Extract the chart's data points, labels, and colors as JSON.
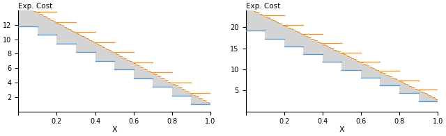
{
  "left_plot": {
    "title": "Exp. Cost",
    "xlabel": "X",
    "n_outer": 10,
    "n_inner": 10,
    "x_max": 1.0,
    "lower_func_a": 1.0,
    "lower_func_b": 12.0,
    "upper_func_a": 1.2,
    "upper_func_b": 14.0,
    "ylim": [
      0,
      14
    ],
    "yticks": [
      2,
      4,
      6,
      8,
      10,
      12
    ]
  },
  "right_plot": {
    "title": "Exp. Cost",
    "xlabel": "X",
    "n_outer": 10,
    "n_inner": 10,
    "x_max": 1.0,
    "lower_func_a": 2.5,
    "lower_func_b": 18.5,
    "upper_func_a": 3.0,
    "upper_func_b": 22.0,
    "ylim": [
      0,
      24
    ],
    "yticks": [
      5,
      10,
      15,
      20
    ]
  },
  "blue_color": "#5b9bd5",
  "orange_color": "#ed9b2f",
  "gray_fill": "#d4d4d4",
  "background": "#ffffff"
}
